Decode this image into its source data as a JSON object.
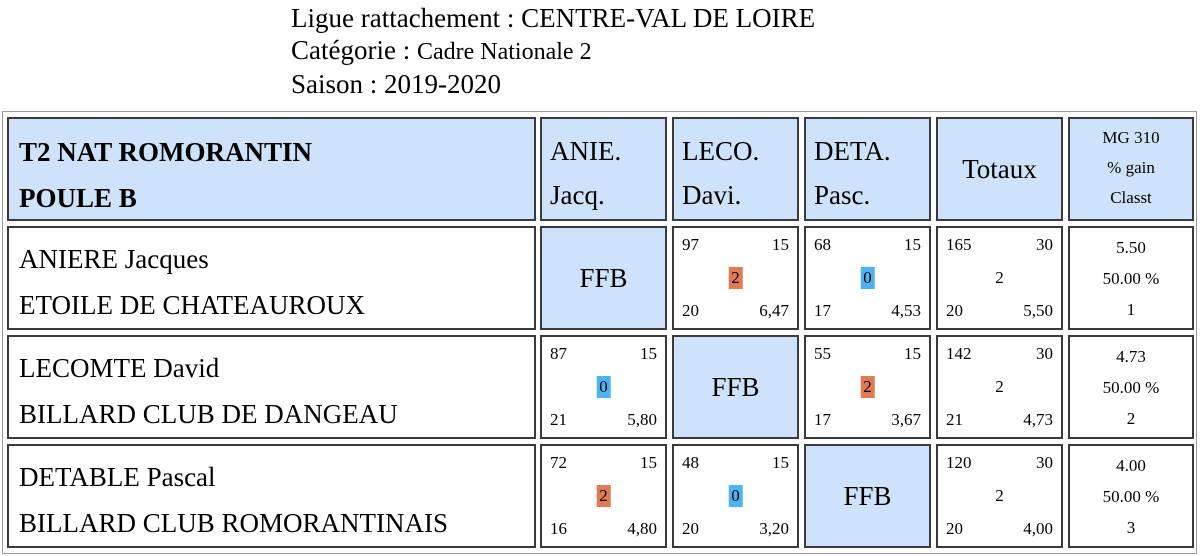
{
  "header": {
    "lines": [
      {
        "label": "Ligue rattachement : ",
        "value": "CENTRE-VAL DE LOIRE"
      },
      {
        "label": "Catégorie : ",
        "value": "Cadre Nationale 2"
      },
      {
        "label": "Saison : ",
        "value": "2019-2020"
      }
    ]
  },
  "table": {
    "title_line1": "T2 NAT ROMORANTIN",
    "title_line2": "POULE B",
    "columns": [
      {
        "l1": "ANIE.",
        "l2": "Jacq."
      },
      {
        "l1": "LECO.",
        "l2": "Davi."
      },
      {
        "l1": "DETA.",
        "l2": "Pasc."
      }
    ],
    "totals_label": "Totaux",
    "mg_header": [
      "MG 310",
      "% gain",
      "Classt"
    ],
    "ffb_label": "FFB",
    "colors": {
      "header_bg": "#cfe2fb",
      "win": "#e07a52",
      "loss": "#4fb3f3"
    },
    "rows": [
      {
        "name": "ANIERE Jacques",
        "club": "ETOILE DE CHATEAUROUX",
        "cells": [
          null,
          {
            "tl": "97",
            "tr": "15",
            "mid": "2",
            "bl": "20",
            "br": "6,47",
            "status": "win"
          },
          {
            "tl": "68",
            "tr": "15",
            "mid": "0",
            "bl": "17",
            "br": "4,53",
            "status": "loss"
          }
        ],
        "totals": {
          "tl": "165",
          "tr": "30",
          "mid": "2",
          "bl": "20",
          "br": "5,50"
        },
        "mg": [
          "5.50",
          "50.00 %",
          "1"
        ]
      },
      {
        "name": "LECOMTE David",
        "club": "BILLARD CLUB DE DANGEAU",
        "cells": [
          {
            "tl": "87",
            "tr": "15",
            "mid": "0",
            "bl": "21",
            "br": "5,80",
            "status": "loss"
          },
          null,
          {
            "tl": "55",
            "tr": "15",
            "mid": "2",
            "bl": "17",
            "br": "3,67",
            "status": "win"
          }
        ],
        "totals": {
          "tl": "142",
          "tr": "30",
          "mid": "2",
          "bl": "21",
          "br": "4,73"
        },
        "mg": [
          "4.73",
          "50.00 %",
          "2"
        ]
      },
      {
        "name": "DETABLE Pascal",
        "club": "BILLARD CLUB ROMORANTINAIS",
        "cells": [
          {
            "tl": "72",
            "tr": "15",
            "mid": "2",
            "bl": "16",
            "br": "4,80",
            "status": "win"
          },
          {
            "tl": "48",
            "tr": "15",
            "mid": "0",
            "bl": "20",
            "br": "3,20",
            "status": "loss"
          },
          null
        ],
        "totals": {
          "tl": "120",
          "tr": "30",
          "mid": "2",
          "bl": "20",
          "br": "4,00"
        },
        "mg": [
          "4.00",
          "50.00 %",
          "3"
        ]
      }
    ]
  }
}
